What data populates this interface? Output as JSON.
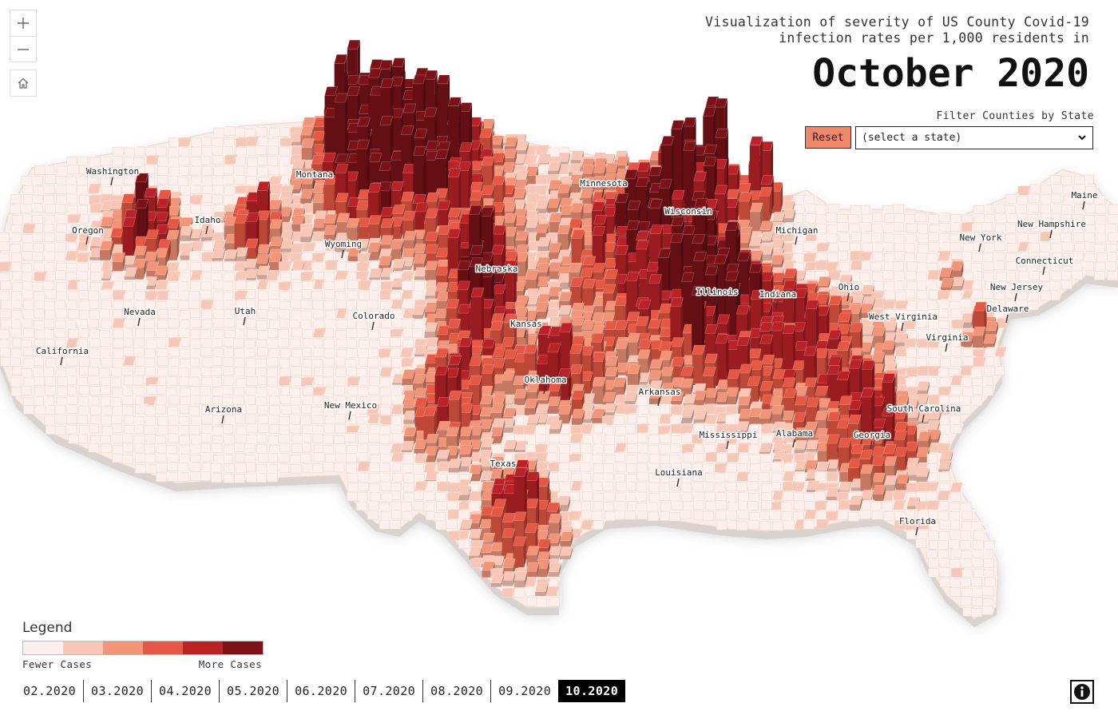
{
  "title": {
    "subtitle": "Visualization of severity of US County Covid-19\ninfection rates per 1,000 residents in",
    "month": "October 2020"
  },
  "filter": {
    "label": "Filter Counties by State",
    "reset_label": "Reset",
    "select_value": "(select a state)"
  },
  "legend": {
    "title": "Legend",
    "low_label": "Fewer Cases",
    "high_label": "More Cases",
    "colors": [
      "#fdf0ec",
      "#f8c6b5",
      "#f29478",
      "#e65843",
      "#bb2227",
      "#7a1218"
    ]
  },
  "timeline": {
    "items": [
      "02.2020",
      "03.2020",
      "04.2020",
      "05.2020",
      "06.2020",
      "07.2020",
      "08.2020",
      "09.2020",
      "10.2020"
    ],
    "active": "10.2020"
  },
  "map": {
    "state_labels": [
      "Washington",
      "Montana",
      "Minnesota",
      "Maine",
      "Oregon",
      "Idaho",
      "Wisconsin",
      "New Hampshire",
      "Wyoming",
      "Michigan",
      "New York",
      "Connecticut",
      "Nebraska",
      "Illinois",
      "Indiana",
      "Ohio",
      "New Jersey",
      "Nevada",
      "Utah",
      "Colorado",
      "Kansas",
      "Delaware",
      "West Virginia",
      "Virginia",
      "California",
      "Oklahoma",
      "Arkansas",
      "South Carolina",
      "New Mexico",
      "Arizona",
      "Mississippi",
      "Alabama",
      "Georgia",
      "Texas",
      "Louisiana",
      "Florida"
    ]
  },
  "icons": {
    "zoom_in": "plus-icon",
    "zoom_out": "minus-icon",
    "home": "home-icon",
    "info": "info-icon",
    "select": "chevron-down-icon"
  }
}
